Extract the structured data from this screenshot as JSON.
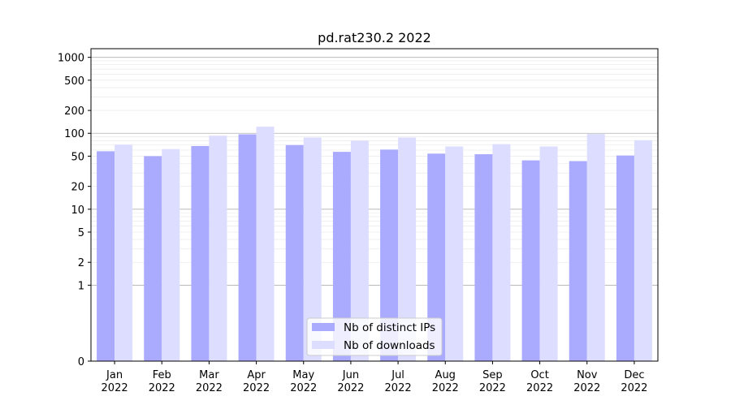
{
  "chart_data": {
    "type": "bar",
    "title": "pd.rat230.2 2022",
    "xlabel": "",
    "ylabel": "",
    "yscale": "symlog",
    "ylim": [
      0,
      1300
    ],
    "yticks": [
      0,
      1,
      2,
      5,
      10,
      20,
      50,
      100,
      200,
      500,
      1000
    ],
    "ytick_labels": [
      "0",
      "1",
      "2",
      "5",
      "10",
      "20",
      "50",
      "100",
      "200",
      "500",
      "1000"
    ],
    "categories": [
      "Jan\n2022",
      "Feb\n2022",
      "Mar\n2022",
      "Apr\n2022",
      "May\n2022",
      "Jun\n2022",
      "Jul\n2022",
      "Aug\n2022",
      "Sep\n2022",
      "Oct\n2022",
      "Nov\n2022",
      "Dec\n2022"
    ],
    "series": [
      {
        "name": "Nb of distinct IPs",
        "color": "#aaaaff",
        "values": [
          58,
          50,
          68,
          97,
          70,
          57,
          61,
          54,
          53,
          44,
          43,
          51
        ]
      },
      {
        "name": "Nb of downloads",
        "color": "#ddddff",
        "values": [
          71,
          62,
          93,
          122,
          88,
          80,
          88,
          67,
          72,
          67,
          98,
          81
        ]
      }
    ],
    "grid": true,
    "legend_position": "bottom-center"
  }
}
